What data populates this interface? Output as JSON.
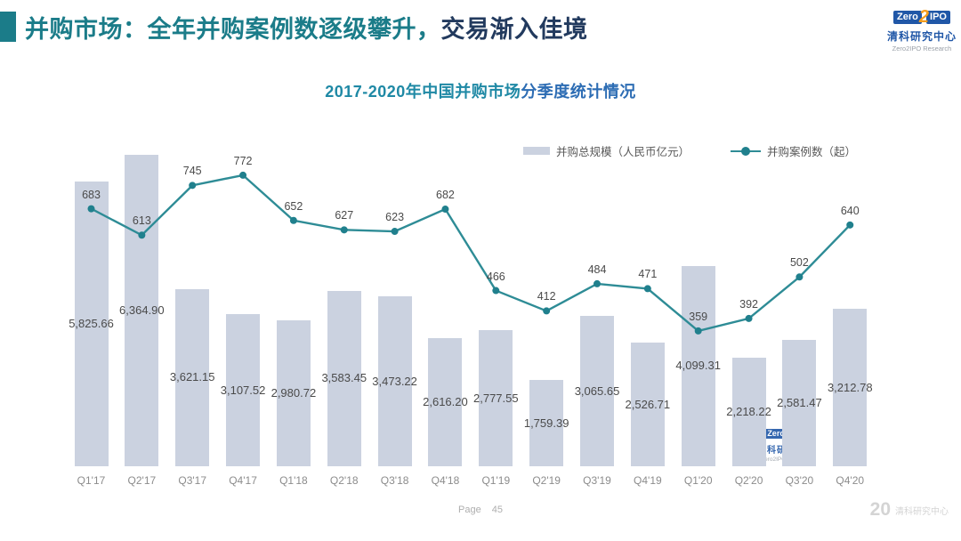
{
  "header": {
    "title_part1": "并购市场：全年并购案例数逐级攀升，",
    "title_part2": "交易渐入佳境",
    "accent_color": "#1b7c89"
  },
  "brand_logo": {
    "zero": "Zero",
    "two": "2",
    "ipo": "IPO",
    "cn": "清科研究中心",
    "en": "Zero2IPO Research",
    "blue": "#2057a7",
    "orange": "#f49d1d"
  },
  "chart_heading": {
    "part1": "2017-2020年中国并购市场",
    "part2": "分季度统计情况"
  },
  "legend": {
    "bar_label": "并购总规模（人民币亿元）",
    "line_label": "并购案例数（起）"
  },
  "chart_data": {
    "type": "bar",
    "title": "2017-2020年中国并购市场分季度统计情况",
    "categories": [
      "Q1'17",
      "Q2'17",
      "Q3'17",
      "Q4'17",
      "Q1'18",
      "Q2'18",
      "Q3'18",
      "Q4'18",
      "Q1'19",
      "Q2'19",
      "Q3'19",
      "Q4'19",
      "Q1'20",
      "Q2'20",
      "Q3'20",
      "Q4'20"
    ],
    "series": [
      {
        "name": "并购总规模（人民币亿元）",
        "type": "bar",
        "color": "#cbd2e0",
        "values": [
          5825.66,
          6364.9,
          3621.15,
          3107.52,
          2980.72,
          3583.45,
          3473.22,
          2616.2,
          2777.55,
          1759.39,
          3065.65,
          2526.71,
          4099.31,
          2218.22,
          2581.47,
          3212.78
        ],
        "labels": [
          "5,825.66",
          "6,364.90",
          "3,621.15",
          "3,107.52",
          "2,980.72",
          "3,583.45",
          "3,473.22",
          "2,616.20",
          "2,777.55",
          "1,759.39",
          "3,065.65",
          "2,526.71",
          "4,099.31",
          "2,218.22",
          "2,581.47",
          "3,212.78"
        ]
      },
      {
        "name": "并购案例数（起）",
        "type": "line",
        "color": "#2e8c96",
        "marker_color": "#20808d",
        "values": [
          683,
          613,
          745,
          772,
          652,
          627,
          623,
          682,
          466,
          412,
          484,
          471,
          359,
          392,
          502,
          640
        ],
        "labels": [
          "683",
          "613",
          "745",
          "772",
          "652",
          "627",
          "623",
          "682",
          "466",
          "412",
          "484",
          "471",
          "359",
          "392",
          "502",
          "640"
        ]
      }
    ],
    "xlabel": "",
    "ylabel_left": "并购总规模（人民币亿元）",
    "ylabel_right": "并购案例数（起）",
    "ylim_bar": [
      0,
      7000
    ],
    "ylim_line": [
      0,
      825
    ],
    "grid": false,
    "legend_position": "top-right",
    "data_labels": true
  },
  "footer": {
    "page_label": "Page",
    "page_number": "45",
    "brand_mark": "20",
    "brand_text": "清科研究中心"
  }
}
